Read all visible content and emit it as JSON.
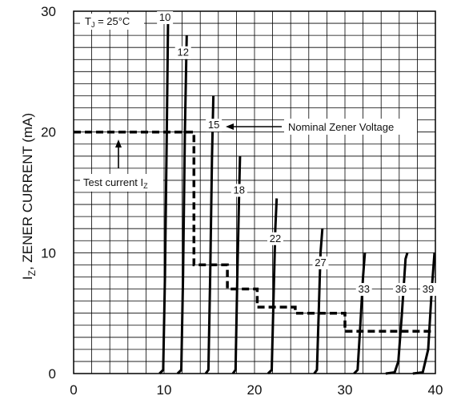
{
  "chart_data": {
    "type": "line",
    "title": "",
    "xlabel": "",
    "ylabel": "I",
    "ylabel_sub": "Z",
    "ylabel_rest": ", ZENER CURRENT (mA)",
    "xlim": [
      0,
      40
    ],
    "ylim": [
      0,
      30
    ],
    "x_ticks": [
      0,
      10,
      20,
      30,
      40
    ],
    "y_ticks": [
      0,
      10,
      20,
      30
    ],
    "grid": true,
    "temperature_note": {
      "t": "T",
      "sub": "J",
      "rest": " = 25°C"
    },
    "series": [
      {
        "name": "10",
        "points": [
          [
            9.5,
            0
          ],
          [
            9.9,
            0.3
          ],
          [
            10.1,
            8
          ],
          [
            10.3,
            20
          ],
          [
            10.45,
            30
          ]
        ]
      },
      {
        "name": "12",
        "points": [
          [
            11.5,
            0
          ],
          [
            11.9,
            0.3
          ],
          [
            12.1,
            8
          ],
          [
            12.3,
            20
          ],
          [
            12.5,
            28
          ]
        ]
      },
      {
        "name": "15",
        "points": [
          [
            14.6,
            0
          ],
          [
            14.9,
            0.3
          ],
          [
            15.1,
            8
          ],
          [
            15.3,
            18
          ],
          [
            15.45,
            23
          ]
        ]
      },
      {
        "name": "18",
        "points": [
          [
            17.6,
            0
          ],
          [
            17.9,
            0.3
          ],
          [
            18.1,
            8
          ],
          [
            18.3,
            15
          ],
          [
            18.4,
            18
          ]
        ]
      },
      {
        "name": "22",
        "points": [
          [
            21.5,
            0
          ],
          [
            21.9,
            0.3
          ],
          [
            22.1,
            6
          ],
          [
            22.3,
            12
          ],
          [
            22.45,
            14.5
          ]
        ]
      },
      {
        "name": "27",
        "points": [
          [
            26.6,
            0
          ],
          [
            26.9,
            0.3
          ],
          [
            27.1,
            5
          ],
          [
            27.3,
            10
          ],
          [
            27.5,
            12
          ]
        ]
      },
      {
        "name": "33",
        "points": [
          [
            31,
            0
          ],
          [
            31.4,
            0.3
          ],
          [
            31.7,
            4
          ],
          [
            32,
            8
          ],
          [
            32.2,
            10
          ]
        ]
      },
      {
        "name": "36",
        "points": [
          [
            34.5,
            0
          ],
          [
            35.5,
            0.1
          ],
          [
            35.9,
            1
          ],
          [
            36.3,
            5
          ],
          [
            36.7,
            9.5
          ],
          [
            36.9,
            10
          ]
        ]
      },
      {
        "name": "39",
        "points": [
          [
            37.5,
            0
          ],
          [
            38.6,
            0.1
          ],
          [
            39.2,
            2
          ],
          [
            39.6,
            7
          ],
          [
            39.9,
            10
          ]
        ]
      }
    ],
    "test_current": {
      "name": "Test current IZ",
      "points": [
        [
          0,
          20
        ],
        [
          13.3,
          20
        ],
        [
          13.3,
          9
        ],
        [
          17,
          9
        ],
        [
          17,
          7
        ],
        [
          20.3,
          7
        ],
        [
          20.3,
          5.5
        ],
        [
          24.5,
          5.5
        ],
        [
          24.5,
          5
        ],
        [
          30,
          5
        ],
        [
          30,
          3.5
        ],
        [
          40,
          3.5
        ]
      ]
    },
    "annotations": {
      "nominal": "Nominal Zener Voltage",
      "test_current": "Test current I",
      "test_current_sub": "Z"
    }
  }
}
